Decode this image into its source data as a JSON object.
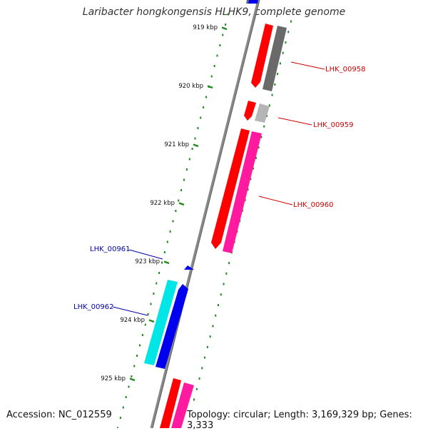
{
  "title": "Laribacter hongkongensis HLHK9, complete genome",
  "accession": "Accession: NC_012559",
  "topology": "Topology: circular; Length: 3,169,329 bp; Genes: 3,333",
  "colors": {
    "backbone": "#777777",
    "ruler": "#1f8a1f",
    "cds_forward": "#ff0000",
    "cds_forward_2": "#ff1aa0",
    "cds_reverse": "#0000ee",
    "cds_reverse_2": "#00e5e5",
    "cds_gray": "#666666",
    "cds_lightgray": "#b5b5b5",
    "label_forward": "#cc0000",
    "label_reverse": "#0000aa"
  },
  "ruler_ticks": [
    {
      "label": "919 kbp"
    },
    {
      "label": "920 kbp"
    },
    {
      "label": "921 kbp"
    },
    {
      "label": "922 kbp"
    },
    {
      "label": "923 kbp"
    },
    {
      "label": "924 kbp"
    },
    {
      "label": "925 kbp"
    }
  ],
  "gene_labels": [
    {
      "name": "LHK_00958",
      "strand": "forward"
    },
    {
      "name": "LHK_00959",
      "strand": "forward"
    },
    {
      "name": "LHK_00960",
      "strand": "forward"
    },
    {
      "name": "LHK_00961",
      "strand": "reverse"
    },
    {
      "name": "LHK_00962",
      "strand": "reverse"
    }
  ]
}
